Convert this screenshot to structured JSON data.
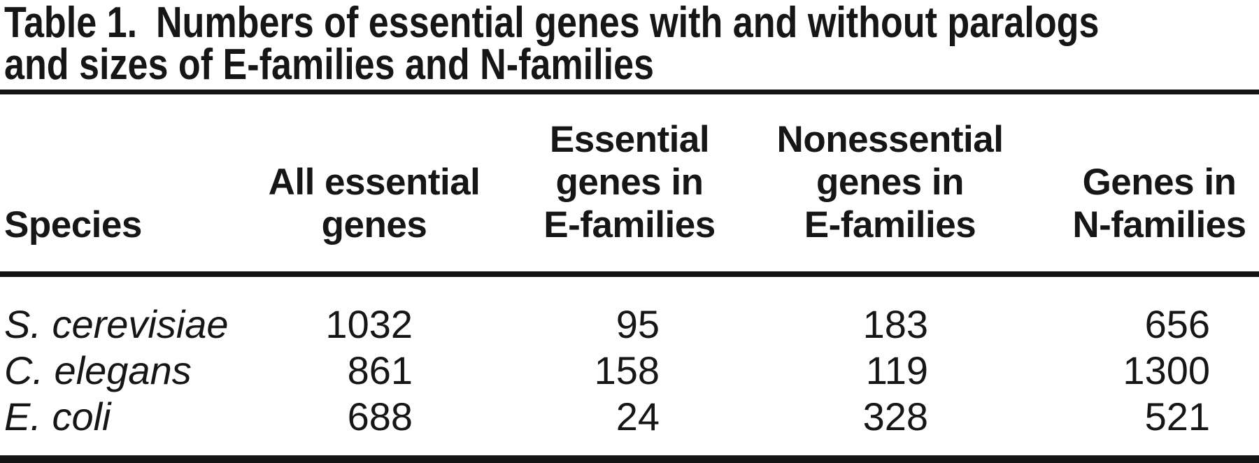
{
  "title": {
    "label": "Table 1.",
    "line1": "Numbers of essential genes with and without paralogs",
    "line2": "and sizes of E-families and N-families"
  },
  "table": {
    "columns": [
      "Species",
      "All essential\ngenes",
      "Essential\ngenes in\nE-families",
      "Nonessential\ngenes in\nE-families",
      "Genes in\nN-families"
    ],
    "rows": [
      {
        "species": "S. cerevisiae",
        "values": [
          "1032",
          "95",
          "183",
          "656"
        ]
      },
      {
        "species": "C. elegans",
        "values": [
          "861",
          "158",
          "119",
          "1300"
        ]
      },
      {
        "species": "E. coli",
        "values": [
          "688",
          "24",
          "328",
          "521"
        ]
      }
    ]
  },
  "chart_data": {
    "type": "table",
    "title": "Table 1. Numbers of essential genes with and without paralogs and sizes of E-families and N-families",
    "columns": [
      "Species",
      "All essential genes",
      "Essential genes in E-families",
      "Nonessential genes in E-families",
      "Genes in N-families"
    ],
    "rows": [
      [
        "S. cerevisiae",
        1032,
        95,
        183,
        656
      ],
      [
        "C. elegans",
        861,
        158,
        119,
        1300
      ],
      [
        "E. coli",
        688,
        24,
        328,
        521
      ]
    ]
  },
  "colors": {
    "text": "#161616",
    "rule": "#141414",
    "background": "#ffffff"
  }
}
